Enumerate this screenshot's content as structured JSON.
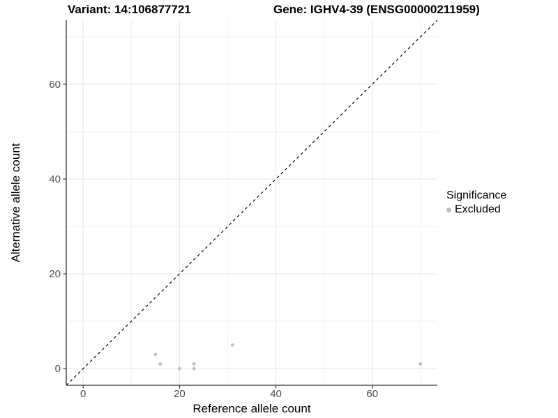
{
  "titles": {
    "variant": "Variant: 14:106877721",
    "gene": "Gene: IGHV4-39 (ENSG00000211959)"
  },
  "axes": {
    "x_label": "Reference allele count",
    "y_label": "Alternative allele count"
  },
  "legend": {
    "title": "Significance",
    "items": [
      {
        "label": "Excluded",
        "color": "#bebebe"
      }
    ]
  },
  "colors": {
    "point": "#bebebe",
    "grid_major": "#e4e4e4",
    "grid_minor": "#f1f1f1",
    "axis_line": "#333333",
    "tick_label": "#4d4d4d",
    "identity_line": "#000000",
    "background": "#ffffff"
  },
  "chart_data": {
    "type": "scatter",
    "title": "Variant: 14:106877721 | Gene: IGHV4-39 (ENSG00000211959)",
    "xlabel": "Reference allele count",
    "ylabel": "Alternative allele count",
    "xlim": [
      -3.5,
      73.5
    ],
    "ylim": [
      -3.5,
      73.5
    ],
    "x_ticks": [
      0,
      20,
      40,
      60
    ],
    "y_ticks": [
      0,
      20,
      40,
      60
    ],
    "x_minor_ticks": [
      10,
      30,
      50,
      70
    ],
    "y_minor_ticks": [
      10,
      30,
      50,
      70
    ],
    "grid": true,
    "legend_position": "right",
    "identity_line": {
      "style": "dashed",
      "from": [
        -3.5,
        -3.5
      ],
      "to": [
        73.5,
        73.5
      ]
    },
    "series": [
      {
        "name": "Excluded",
        "color": "#bebebe",
        "points": [
          [
            15,
            3
          ],
          [
            16,
            1
          ],
          [
            20,
            0
          ],
          [
            23,
            0
          ],
          [
            23,
            1
          ],
          [
            31,
            5
          ],
          [
            70,
            1
          ]
        ]
      }
    ]
  }
}
